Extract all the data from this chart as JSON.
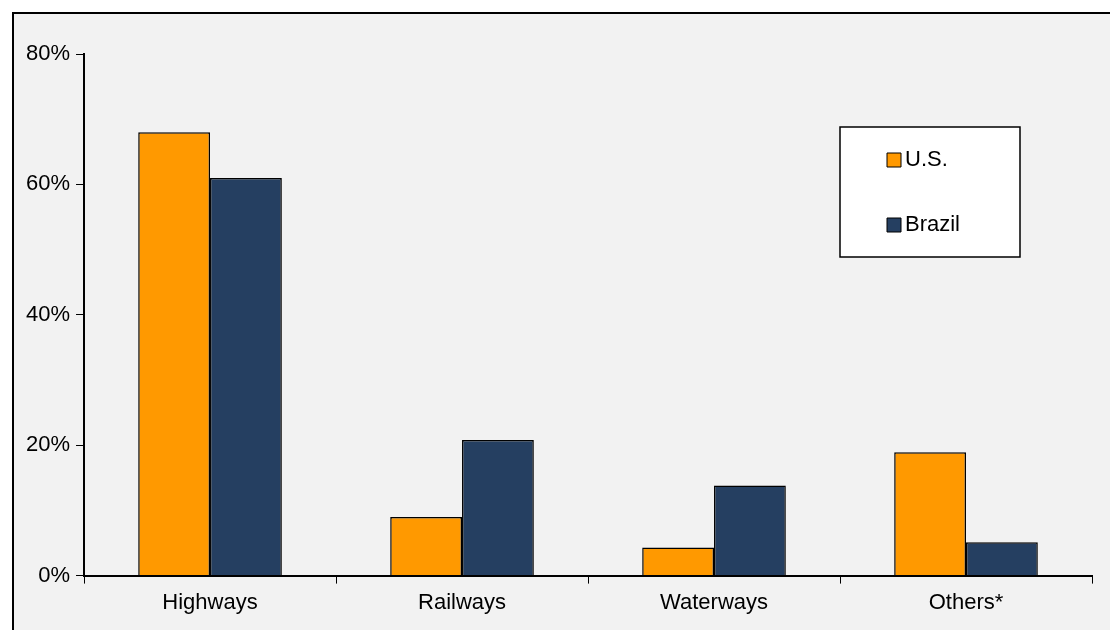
{
  "chart_data": {
    "type": "bar",
    "categories": [
      "Highways",
      "Railways",
      "Waterways",
      "Others*"
    ],
    "series": [
      {
        "name": "U.S.",
        "color": "#ff9900",
        "values": [
          68,
          9,
          4.3,
          18.9
        ]
      },
      {
        "name": "Brazil",
        "color": "#253f61",
        "values": [
          61,
          20.8,
          13.8,
          5.1
        ]
      }
    ],
    "ylim": [
      0,
      80
    ],
    "yticks": [
      {
        "value": 0,
        "label": "0%"
      },
      {
        "value": 20,
        "label": "20%"
      },
      {
        "value": 40,
        "label": "40%"
      },
      {
        "value": 60,
        "label": "60%"
      },
      {
        "value": 80,
        "label": "80%"
      }
    ],
    "grid": false,
    "legend": "top right"
  }
}
